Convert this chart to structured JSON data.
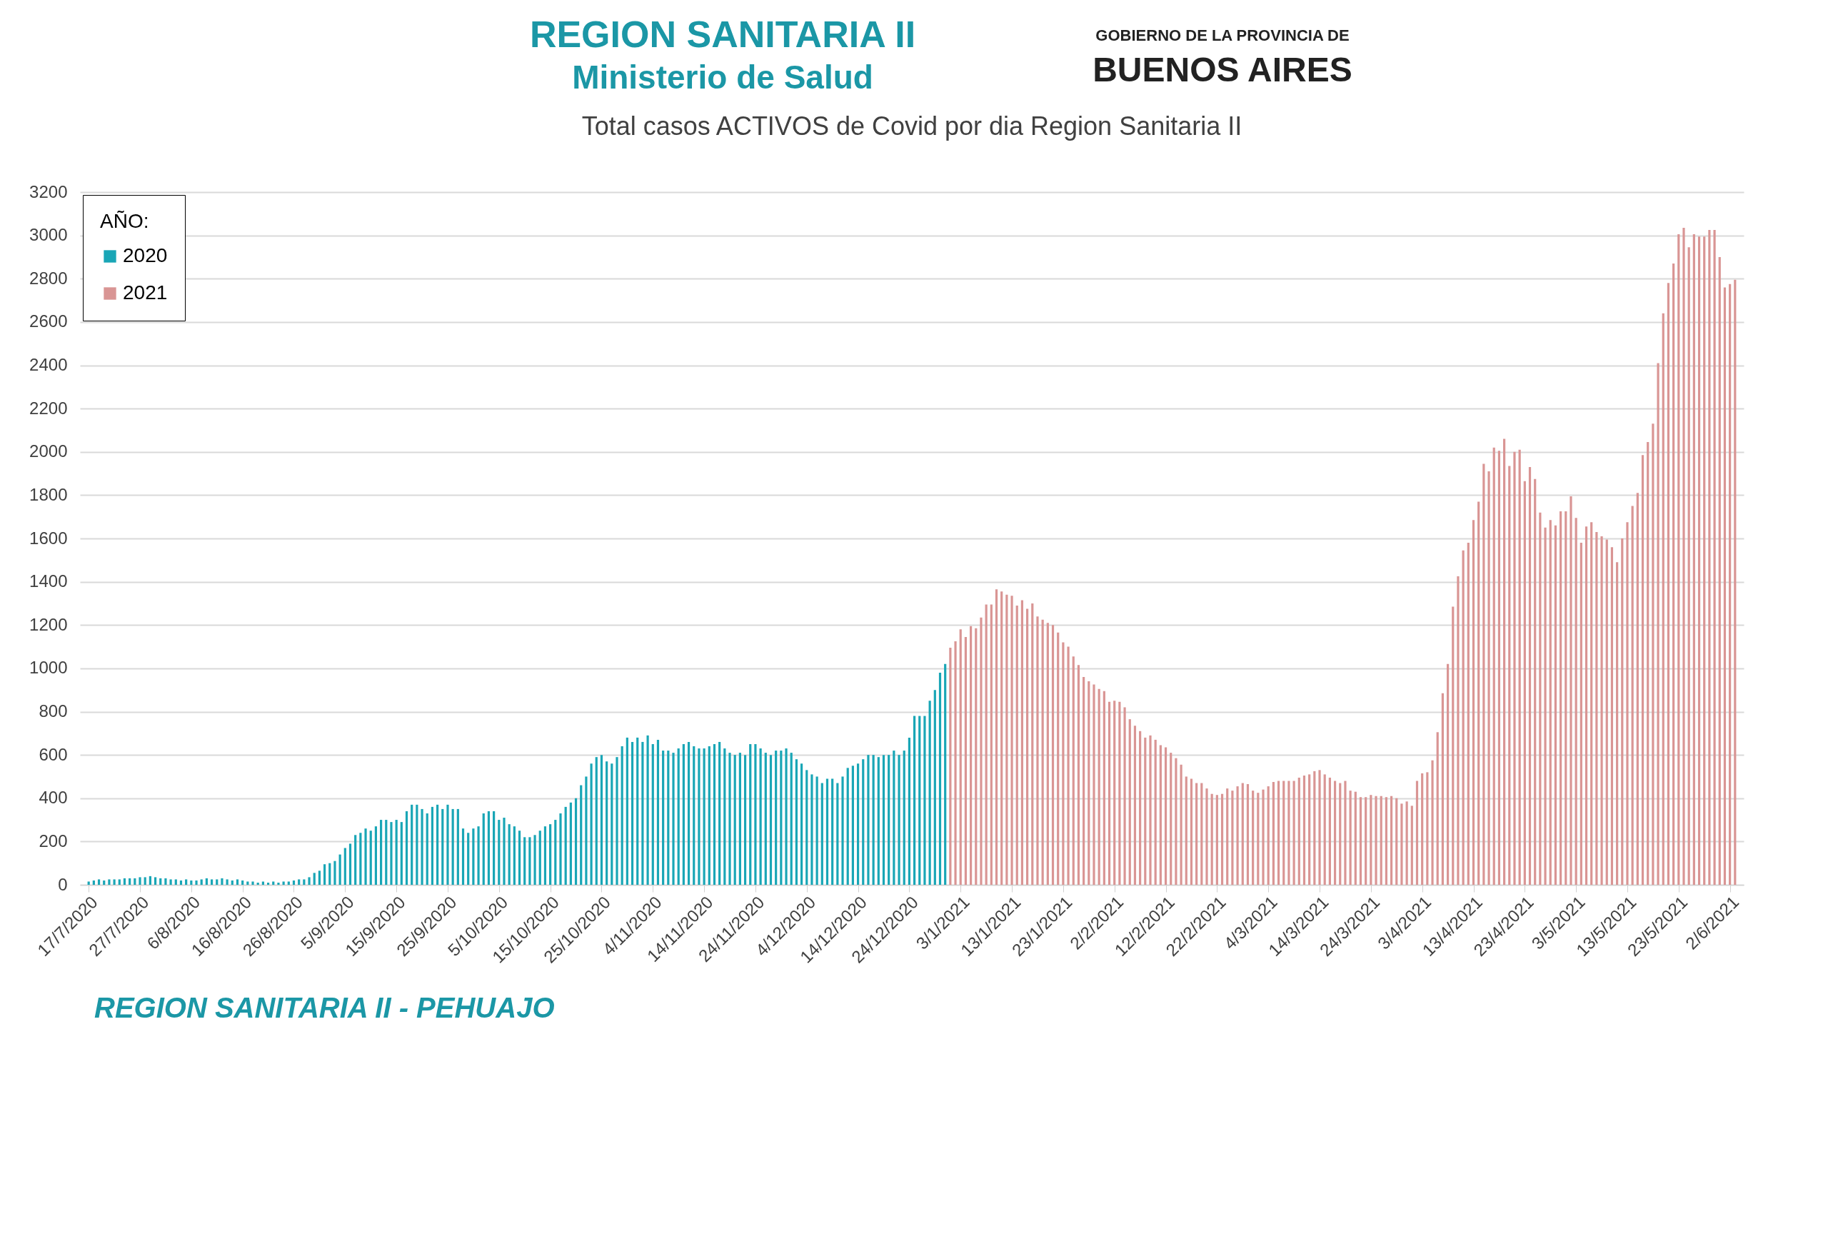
{
  "chart_data": {
    "type": "bar",
    "title": "Total casos ACTIVOS de Covid por dia Region Sanitaria II",
    "legend_title": "AÑO:",
    "legend": "top left",
    "grid": "y",
    "annotations": [
      "REGION SANITARIA II",
      "Ministerio de Salud",
      "GOBIERNO DE LA PROVINCIA DE",
      "BUENOS AIRES",
      "REGION SANITARIA II - PEHUAJO"
    ],
    "ylim": [
      0,
      3200
    ],
    "yticks": [
      0,
      200,
      400,
      600,
      800,
      1000,
      1200,
      1400,
      1600,
      1800,
      2000,
      2200,
      2400,
      2600,
      2800,
      3000,
      3200
    ],
    "xlim": [
      "2020-07-16",
      "2021-06-04"
    ],
    "xticks": [
      {
        "value": "2020-07-17",
        "label": "17/7/2020"
      },
      {
        "value": "2020-07-27",
        "label": "27/7/2020"
      },
      {
        "value": "2020-08-06",
        "label": "6/8/2020"
      },
      {
        "value": "2020-08-16",
        "label": "16/8/2020"
      },
      {
        "value": "2020-08-26",
        "label": "26/8/2020"
      },
      {
        "value": "2020-09-05",
        "label": "5/9/2020"
      },
      {
        "value": "2020-09-15",
        "label": "15/9/2020"
      },
      {
        "value": "2020-09-25",
        "label": "25/9/2020"
      },
      {
        "value": "2020-10-05",
        "label": "5/10/2020"
      },
      {
        "value": "2020-10-15",
        "label": "15/10/2020"
      },
      {
        "value": "2020-10-25",
        "label": "25/10/2020"
      },
      {
        "value": "2020-11-04",
        "label": "4/11/2020"
      },
      {
        "value": "2020-11-14",
        "label": "14/11/2020"
      },
      {
        "value": "2020-11-24",
        "label": "24/11/2020"
      },
      {
        "value": "2020-12-04",
        "label": "4/12/2020"
      },
      {
        "value": "2020-12-14",
        "label": "14/12/2020"
      },
      {
        "value": "2020-12-24",
        "label": "24/12/2020"
      },
      {
        "value": "2021-01-03",
        "label": "3/1/2021"
      },
      {
        "value": "2021-01-13",
        "label": "13/1/2021"
      },
      {
        "value": "2021-01-23",
        "label": "23/1/2021"
      },
      {
        "value": "2021-02-02",
        "label": "2/2/2021"
      },
      {
        "value": "2021-02-12",
        "label": "12/2/2021"
      },
      {
        "value": "2021-02-22",
        "label": "22/2/2021"
      },
      {
        "value": "2021-03-04",
        "label": "4/3/2021"
      },
      {
        "value": "2021-03-14",
        "label": "14/3/2021"
      },
      {
        "value": "2021-03-24",
        "label": "24/3/2021"
      },
      {
        "value": "2021-04-03",
        "label": "3/4/2021"
      },
      {
        "value": "2021-04-13",
        "label": "13/4/2021"
      },
      {
        "value": "2021-04-23",
        "label": "23/4/2021"
      },
      {
        "value": "2021-05-03",
        "label": "3/5/2021"
      },
      {
        "value": "2021-05-13",
        "label": "13/5/2021"
      },
      {
        "value": "2021-05-23",
        "label": "23/5/2021"
      },
      {
        "value": "2021-06-02",
        "label": "2/6/2021"
      }
    ],
    "series": [
      {
        "name": "2020",
        "color": "#19a6b6",
        "x": [
          "2020-07-17",
          "2020-07-18",
          "2020-07-19",
          "2020-07-20",
          "2020-07-21",
          "2020-07-22",
          "2020-07-23",
          "2020-07-24",
          "2020-07-25",
          "2020-07-26",
          "2020-07-27",
          "2020-07-28",
          "2020-07-29",
          "2020-07-30",
          "2020-07-31",
          "2020-08-01",
          "2020-08-02",
          "2020-08-03",
          "2020-08-04",
          "2020-08-05",
          "2020-08-06",
          "2020-08-07",
          "2020-08-08",
          "2020-08-09",
          "2020-08-10",
          "2020-08-11",
          "2020-08-12",
          "2020-08-13",
          "2020-08-14",
          "2020-08-15",
          "2020-08-16",
          "2020-08-17",
          "2020-08-18",
          "2020-08-19",
          "2020-08-20",
          "2020-08-21",
          "2020-08-22",
          "2020-08-23",
          "2020-08-24",
          "2020-08-25",
          "2020-08-26",
          "2020-08-27",
          "2020-08-28",
          "2020-08-29",
          "2020-08-30",
          "2020-08-31",
          "2020-09-01",
          "2020-09-02",
          "2020-09-03",
          "2020-09-04",
          "2020-09-05",
          "2020-09-06",
          "2020-09-07",
          "2020-09-08",
          "2020-09-09",
          "2020-09-10",
          "2020-09-11",
          "2020-09-12",
          "2020-09-13",
          "2020-09-14",
          "2020-09-15",
          "2020-09-16",
          "2020-09-17",
          "2020-09-18",
          "2020-09-19",
          "2020-09-20",
          "2020-09-21",
          "2020-09-22",
          "2020-09-23",
          "2020-09-24",
          "2020-09-25",
          "2020-09-26",
          "2020-09-27",
          "2020-09-28",
          "2020-09-29",
          "2020-09-30",
          "2020-10-01",
          "2020-10-02",
          "2020-10-03",
          "2020-10-04",
          "2020-10-05",
          "2020-10-06",
          "2020-10-07",
          "2020-10-08",
          "2020-10-09",
          "2020-10-10",
          "2020-10-11",
          "2020-10-12",
          "2020-10-13",
          "2020-10-14",
          "2020-10-15",
          "2020-10-16",
          "2020-10-17",
          "2020-10-18",
          "2020-10-19",
          "2020-10-20",
          "2020-10-21",
          "2020-10-22",
          "2020-10-23",
          "2020-10-24",
          "2020-10-25",
          "2020-10-26",
          "2020-10-27",
          "2020-10-28",
          "2020-10-29",
          "2020-10-30",
          "2020-10-31",
          "2020-11-01",
          "2020-11-02",
          "2020-11-03",
          "2020-11-04",
          "2020-11-05",
          "2020-11-06",
          "2020-11-07",
          "2020-11-08",
          "2020-11-09",
          "2020-11-10",
          "2020-11-11",
          "2020-11-12",
          "2020-11-13",
          "2020-11-14",
          "2020-11-15",
          "2020-11-16",
          "2020-11-17",
          "2020-11-18",
          "2020-11-19",
          "2020-11-20",
          "2020-11-21",
          "2020-11-22",
          "2020-11-23",
          "2020-11-24",
          "2020-11-25",
          "2020-11-26",
          "2020-11-27",
          "2020-11-28",
          "2020-11-29",
          "2020-11-30",
          "2020-12-01",
          "2020-12-02",
          "2020-12-03",
          "2020-12-04",
          "2020-12-05",
          "2020-12-06",
          "2020-12-07",
          "2020-12-08",
          "2020-12-09",
          "2020-12-10",
          "2020-12-11",
          "2020-12-12",
          "2020-12-13",
          "2020-12-14",
          "2020-12-15",
          "2020-12-16",
          "2020-12-17",
          "2020-12-18",
          "2020-12-19",
          "2020-12-20",
          "2020-12-21",
          "2020-12-22",
          "2020-12-23",
          "2020-12-24",
          "2020-12-25",
          "2020-12-26",
          "2020-12-27",
          "2020-12-28",
          "2020-12-29",
          "2020-12-30",
          "2020-12-31"
        ],
        "values": [
          15,
          20,
          25,
          20,
          25,
          25,
          25,
          30,
          30,
          30,
          35,
          35,
          40,
          35,
          30,
          30,
          25,
          25,
          20,
          25,
          20,
          20,
          25,
          30,
          25,
          25,
          30,
          25,
          20,
          25,
          20,
          15,
          15,
          10,
          15,
          10,
          15,
          10,
          15,
          15,
          20,
          25,
          25,
          35,
          55,
          65,
          95,
          100,
          110,
          140,
          170,
          190,
          230,
          240,
          260,
          250,
          270,
          300,
          300,
          290,
          300,
          290,
          340,
          370,
          370,
          350,
          330,
          360,
          370,
          350,
          370,
          350,
          350,
          260,
          240,
          260,
          270,
          330,
          340,
          340,
          300,
          310,
          280,
          270,
          250,
          220,
          220,
          230,
          250,
          270,
          280,
          300,
          330,
          360,
          380,
          400,
          460,
          500,
          560,
          590,
          600,
          570,
          560,
          590,
          640,
          680,
          660,
          680,
          660,
          690,
          650,
          670,
          620,
          620,
          610,
          630,
          650,
          660,
          640,
          630,
          630,
          640,
          650,
          660,
          630,
          610,
          600,
          610,
          600,
          650,
          650,
          630,
          610,
          600,
          620,
          620,
          630,
          610,
          580,
          560,
          530,
          510,
          500,
          470,
          490,
          490,
          470,
          500,
          540,
          550,
          560,
          580,
          600,
          600,
          590,
          600,
          600,
          620,
          600,
          620,
          680,
          780,
          780,
          780,
          850,
          900,
          980,
          1020
        ]
      },
      {
        "name": "2021",
        "color": "#d99594",
        "x": [
          "2021-01-01",
          "2021-01-02",
          "2021-01-03",
          "2021-01-04",
          "2021-01-05",
          "2021-01-06",
          "2021-01-07",
          "2021-01-08",
          "2021-01-09",
          "2021-01-10",
          "2021-01-11",
          "2021-01-12",
          "2021-01-13",
          "2021-01-14",
          "2021-01-15",
          "2021-01-16",
          "2021-01-17",
          "2021-01-18",
          "2021-01-19",
          "2021-01-20",
          "2021-01-21",
          "2021-01-22",
          "2021-01-23",
          "2021-01-24",
          "2021-01-25",
          "2021-01-26",
          "2021-01-27",
          "2021-01-28",
          "2021-01-29",
          "2021-01-30",
          "2021-01-31",
          "2021-02-01",
          "2021-02-02",
          "2021-02-03",
          "2021-02-04",
          "2021-02-05",
          "2021-02-06",
          "2021-02-07",
          "2021-02-08",
          "2021-02-09",
          "2021-02-10",
          "2021-02-11",
          "2021-02-12",
          "2021-02-13",
          "2021-02-14",
          "2021-02-15",
          "2021-02-16",
          "2021-02-17",
          "2021-02-18",
          "2021-02-19",
          "2021-02-20",
          "2021-02-21",
          "2021-02-22",
          "2021-02-23",
          "2021-02-24",
          "2021-02-25",
          "2021-02-26",
          "2021-02-27",
          "2021-02-28",
          "2021-03-01",
          "2021-03-02",
          "2021-03-03",
          "2021-03-04",
          "2021-03-05",
          "2021-03-06",
          "2021-03-07",
          "2021-03-08",
          "2021-03-09",
          "2021-03-10",
          "2021-03-11",
          "2021-03-12",
          "2021-03-13",
          "2021-03-14",
          "2021-03-15",
          "2021-03-16",
          "2021-03-17",
          "2021-03-18",
          "2021-03-19",
          "2021-03-20",
          "2021-03-21",
          "2021-03-22",
          "2021-03-23",
          "2021-03-24",
          "2021-03-25",
          "2021-03-26",
          "2021-03-27",
          "2021-03-28",
          "2021-03-29",
          "2021-03-30",
          "2021-03-31",
          "2021-04-01",
          "2021-04-02",
          "2021-04-03",
          "2021-04-04",
          "2021-04-05",
          "2021-04-06",
          "2021-04-07",
          "2021-04-08",
          "2021-04-09",
          "2021-04-10",
          "2021-04-11",
          "2021-04-12",
          "2021-04-13",
          "2021-04-14",
          "2021-04-15",
          "2021-04-16",
          "2021-04-17",
          "2021-04-18",
          "2021-04-19",
          "2021-04-20",
          "2021-04-21",
          "2021-04-22",
          "2021-04-23",
          "2021-04-24",
          "2021-04-25",
          "2021-04-26",
          "2021-04-27",
          "2021-04-28",
          "2021-04-29",
          "2021-04-30",
          "2021-05-01",
          "2021-05-02",
          "2021-05-03",
          "2021-05-04",
          "2021-05-05",
          "2021-05-06",
          "2021-05-07",
          "2021-05-08",
          "2021-05-09",
          "2021-05-10",
          "2021-05-11",
          "2021-05-12",
          "2021-05-13",
          "2021-05-14",
          "2021-05-15",
          "2021-05-16",
          "2021-05-17",
          "2021-05-18",
          "2021-05-19",
          "2021-05-20",
          "2021-05-21",
          "2021-05-22",
          "2021-05-23",
          "2021-05-24",
          "2021-05-25",
          "2021-05-26",
          "2021-05-27",
          "2021-05-28",
          "2021-05-29",
          "2021-05-30",
          "2021-05-31",
          "2021-06-01",
          "2021-06-02",
          "2021-06-03"
        ],
        "values": [
          1095,
          1125,
          1180,
          1145,
          1195,
          1185,
          1235,
          1295,
          1295,
          1365,
          1355,
          1340,
          1335,
          1290,
          1315,
          1275,
          1300,
          1240,
          1225,
          1210,
          1200,
          1165,
          1120,
          1100,
          1055,
          1015,
          960,
          940,
          925,
          905,
          895,
          845,
          850,
          845,
          820,
          765,
          735,
          710,
          680,
          690,
          670,
          645,
          635,
          610,
          585,
          555,
          500,
          490,
          470,
          470,
          445,
          420,
          415,
          420,
          445,
          435,
          455,
          470,
          465,
          435,
          425,
          440,
          455,
          475,
          480,
          480,
          480,
          480,
          495,
          505,
          510,
          525,
          530,
          510,
          495,
          480,
          470,
          480,
          435,
          430,
          405,
          405,
          415,
          410,
          410,
          405,
          410,
          400,
          375,
          385,
          365,
          480,
          515,
          520,
          575,
          705,
          885,
          1020,
          1285,
          1425,
          1545,
          1580,
          1685,
          1770,
          1945,
          1910,
          2020,
          2005,
          2060,
          1935,
          2000,
          2010,
          1865,
          1930,
          1875,
          1720,
          1650,
          1685,
          1660,
          1725,
          1725,
          1795,
          1695,
          1580,
          1655,
          1675,
          1630,
          1610,
          1595,
          1560,
          1490,
          1600,
          1675,
          1750,
          1810,
          1985,
          2045,
          2130,
          2410,
          2640,
          2780,
          2870,
          3005,
          3035,
          2945,
          3005,
          2995,
          2995,
          3025,
          3025,
          2900,
          2760,
          2775,
          2795
        ]
      }
    ]
  }
}
